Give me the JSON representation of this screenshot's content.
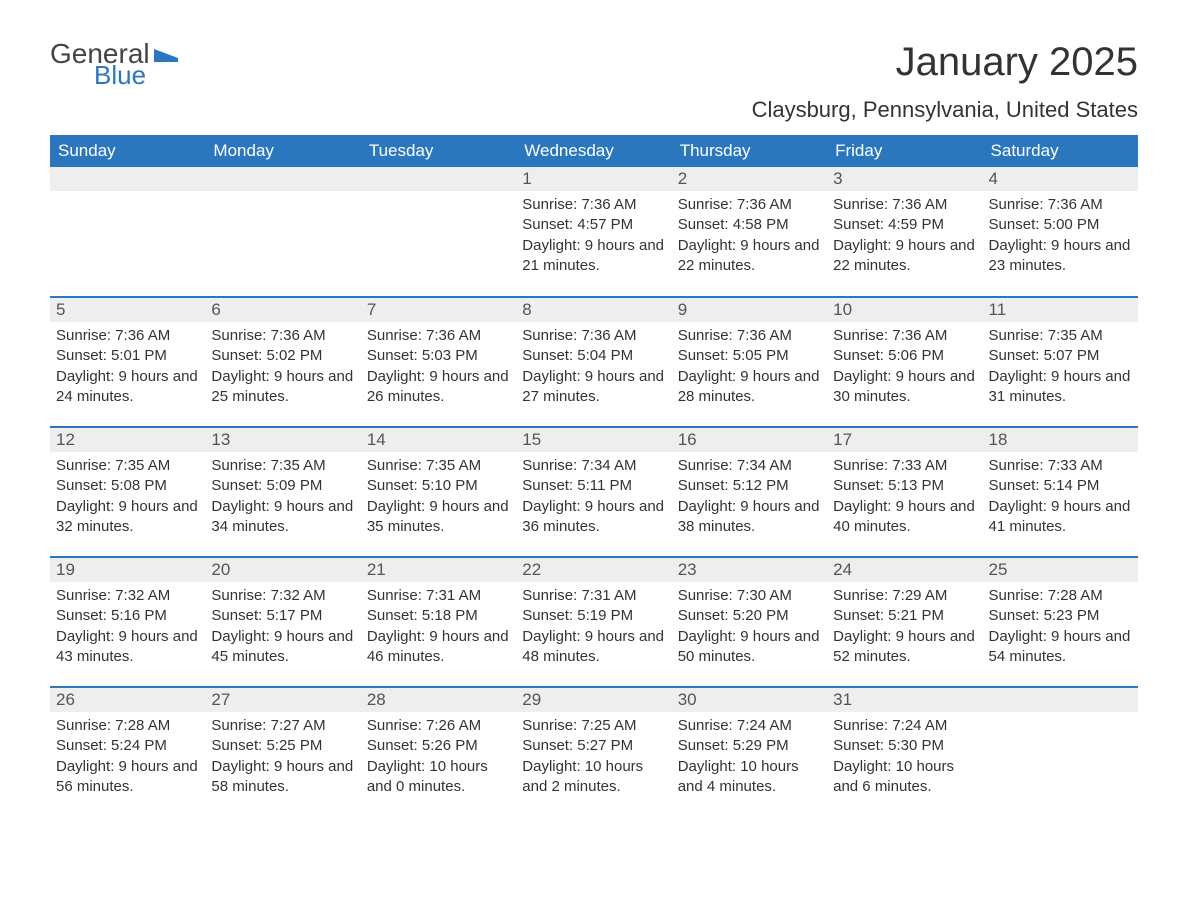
{
  "brand": {
    "part1": "General",
    "part2": "Blue"
  },
  "title": "January 2025",
  "location": "Claysburg, Pennsylvania, United States",
  "colors": {
    "header_bg": "#2b77bd",
    "header_text": "#ffffff",
    "daynum_bg": "#eeeeee",
    "border": "#2b77bd",
    "text": "#333333"
  },
  "weekdays": [
    "Sunday",
    "Monday",
    "Tuesday",
    "Wednesday",
    "Thursday",
    "Friday",
    "Saturday"
  ],
  "labels": {
    "sunrise": "Sunrise: ",
    "sunset": "Sunset: ",
    "daylight": "Daylight: "
  },
  "weeks": [
    [
      null,
      null,
      null,
      {
        "day": "1",
        "sunrise": "7:36 AM",
        "sunset": "4:57 PM",
        "daylight": "9 hours and 21 minutes."
      },
      {
        "day": "2",
        "sunrise": "7:36 AM",
        "sunset": "4:58 PM",
        "daylight": "9 hours and 22 minutes."
      },
      {
        "day": "3",
        "sunrise": "7:36 AM",
        "sunset": "4:59 PM",
        "daylight": "9 hours and 22 minutes."
      },
      {
        "day": "4",
        "sunrise": "7:36 AM",
        "sunset": "5:00 PM",
        "daylight": "9 hours and 23 minutes."
      }
    ],
    [
      {
        "day": "5",
        "sunrise": "7:36 AM",
        "sunset": "5:01 PM",
        "daylight": "9 hours and 24 minutes."
      },
      {
        "day": "6",
        "sunrise": "7:36 AM",
        "sunset": "5:02 PM",
        "daylight": "9 hours and 25 minutes."
      },
      {
        "day": "7",
        "sunrise": "7:36 AM",
        "sunset": "5:03 PM",
        "daylight": "9 hours and 26 minutes."
      },
      {
        "day": "8",
        "sunrise": "7:36 AM",
        "sunset": "5:04 PM",
        "daylight": "9 hours and 27 minutes."
      },
      {
        "day": "9",
        "sunrise": "7:36 AM",
        "sunset": "5:05 PM",
        "daylight": "9 hours and 28 minutes."
      },
      {
        "day": "10",
        "sunrise": "7:36 AM",
        "sunset": "5:06 PM",
        "daylight": "9 hours and 30 minutes."
      },
      {
        "day": "11",
        "sunrise": "7:35 AM",
        "sunset": "5:07 PM",
        "daylight": "9 hours and 31 minutes."
      }
    ],
    [
      {
        "day": "12",
        "sunrise": "7:35 AM",
        "sunset": "5:08 PM",
        "daylight": "9 hours and 32 minutes."
      },
      {
        "day": "13",
        "sunrise": "7:35 AM",
        "sunset": "5:09 PM",
        "daylight": "9 hours and 34 minutes."
      },
      {
        "day": "14",
        "sunrise": "7:35 AM",
        "sunset": "5:10 PM",
        "daylight": "9 hours and 35 minutes."
      },
      {
        "day": "15",
        "sunrise": "7:34 AM",
        "sunset": "5:11 PM",
        "daylight": "9 hours and 36 minutes."
      },
      {
        "day": "16",
        "sunrise": "7:34 AM",
        "sunset": "5:12 PM",
        "daylight": "9 hours and 38 minutes."
      },
      {
        "day": "17",
        "sunrise": "7:33 AM",
        "sunset": "5:13 PM",
        "daylight": "9 hours and 40 minutes."
      },
      {
        "day": "18",
        "sunrise": "7:33 AM",
        "sunset": "5:14 PM",
        "daylight": "9 hours and 41 minutes."
      }
    ],
    [
      {
        "day": "19",
        "sunrise": "7:32 AM",
        "sunset": "5:16 PM",
        "daylight": "9 hours and 43 minutes."
      },
      {
        "day": "20",
        "sunrise": "7:32 AM",
        "sunset": "5:17 PM",
        "daylight": "9 hours and 45 minutes."
      },
      {
        "day": "21",
        "sunrise": "7:31 AM",
        "sunset": "5:18 PM",
        "daylight": "9 hours and 46 minutes."
      },
      {
        "day": "22",
        "sunrise": "7:31 AM",
        "sunset": "5:19 PM",
        "daylight": "9 hours and 48 minutes."
      },
      {
        "day": "23",
        "sunrise": "7:30 AM",
        "sunset": "5:20 PM",
        "daylight": "9 hours and 50 minutes."
      },
      {
        "day": "24",
        "sunrise": "7:29 AM",
        "sunset": "5:21 PM",
        "daylight": "9 hours and 52 minutes."
      },
      {
        "day": "25",
        "sunrise": "7:28 AM",
        "sunset": "5:23 PM",
        "daylight": "9 hours and 54 minutes."
      }
    ],
    [
      {
        "day": "26",
        "sunrise": "7:28 AM",
        "sunset": "5:24 PM",
        "daylight": "9 hours and 56 minutes."
      },
      {
        "day": "27",
        "sunrise": "7:27 AM",
        "sunset": "5:25 PM",
        "daylight": "9 hours and 58 minutes."
      },
      {
        "day": "28",
        "sunrise": "7:26 AM",
        "sunset": "5:26 PM",
        "daylight": "10 hours and 0 minutes."
      },
      {
        "day": "29",
        "sunrise": "7:25 AM",
        "sunset": "5:27 PM",
        "daylight": "10 hours and 2 minutes."
      },
      {
        "day": "30",
        "sunrise": "7:24 AM",
        "sunset": "5:29 PM",
        "daylight": "10 hours and 4 minutes."
      },
      {
        "day": "31",
        "sunrise": "7:24 AM",
        "sunset": "5:30 PM",
        "daylight": "10 hours and 6 minutes."
      },
      null
    ]
  ]
}
